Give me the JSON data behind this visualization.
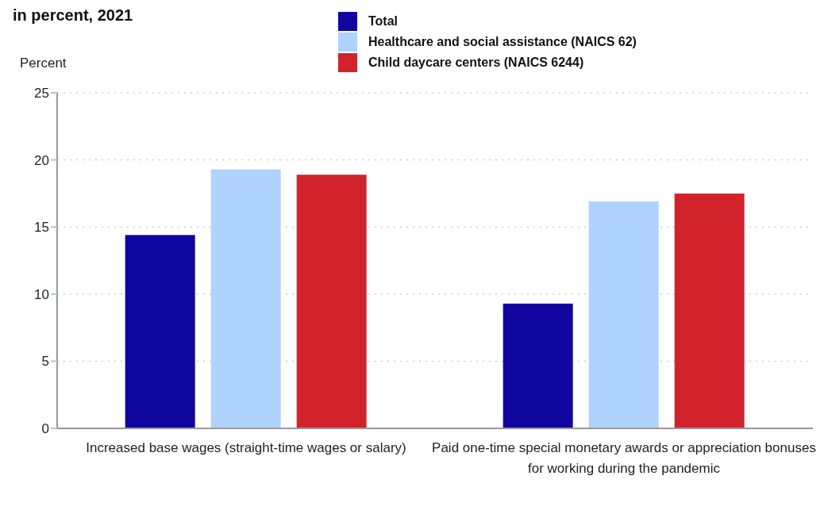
{
  "chart_data": {
    "type": "bar",
    "title": "in percent, 2021",
    "ylabel": "Percent",
    "categories": [
      "Increased base wages (straight-time wages or salary)",
      "Paid one-time special monetary awards or appreciation bonuses for working during the pandemic"
    ],
    "series": [
      {
        "name": "Total",
        "color": "#10069f",
        "values": [
          14.4,
          9.3
        ]
      },
      {
        "name": "Healthcare and social assistance (NAICS 62)",
        "color": "#b0d2ff",
        "values": [
          19.3,
          16.9
        ]
      },
      {
        "name": "Child daycare centers (NAICS 6244)",
        "color": "#d2232c",
        "values": [
          18.9,
          17.5
        ]
      }
    ],
    "ylim": [
      0,
      25
    ],
    "yticks": [
      0,
      5,
      10,
      15,
      20,
      25
    ],
    "grid": "y",
    "legend": "top"
  }
}
